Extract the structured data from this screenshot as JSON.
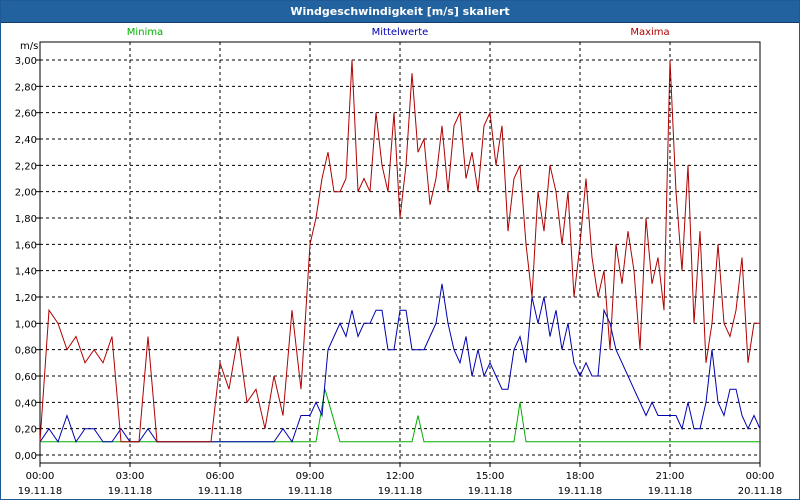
{
  "window": {
    "title": "Windgeschwindigkeit [m/s] skaliert"
  },
  "chart_data": {
    "type": "line",
    "title": "Windgeschwindigkeit [m/s] skaliert",
    "ylabel": "m/s",
    "xlabel": "",
    "ylim": [
      0,
      3.0
    ],
    "yticks": [
      "0,00",
      "0,20",
      "0,40",
      "0,60",
      "0,80",
      "1,00",
      "1,20",
      "1,40",
      "1,60",
      "1,80",
      "2,00",
      "2,20",
      "2,40",
      "2,60",
      "2,80",
      "3,00"
    ],
    "xlim": [
      0,
      24
    ],
    "xticks": [
      {
        "time": "00:00",
        "date": "19.11.18"
      },
      {
        "time": "03:00",
        "date": "19.11.18"
      },
      {
        "time": "06:00",
        "date": "19.11.18"
      },
      {
        "time": "09:00",
        "date": "19.11.18"
      },
      {
        "time": "12:00",
        "date": "19.11.18"
      },
      {
        "time": "15:00",
        "date": "19.11.18"
      },
      {
        "time": "18:00",
        "date": "19.11.18"
      },
      {
        "time": "21:00",
        "date": "19.11.18"
      },
      {
        "time": "00:00",
        "date": "20.11.18"
      }
    ],
    "grid": true,
    "legend_position": "top",
    "series": [
      {
        "name": "Minima",
        "color": "#00b000",
        "x": [
          0,
          8.8,
          9.2,
          9.5,
          10,
          12.4,
          12.6,
          12.8,
          15.8,
          16,
          16.2,
          24
        ],
        "y": [
          0.1,
          0.1,
          0.1,
          0.5,
          0.1,
          0.1,
          0.3,
          0.1,
          0.1,
          0.4,
          0.1,
          0.1
        ]
      },
      {
        "name": "Mittelwerte",
        "color": "#0000b0",
        "x": [
          0,
          0.3,
          0.6,
          0.9,
          1.2,
          1.5,
          1.8,
          2.1,
          2.4,
          2.7,
          3.0,
          3.3,
          3.6,
          3.9,
          4.2,
          4.5,
          4.8,
          5.1,
          5.4,
          5.7,
          6.0,
          6.3,
          6.6,
          6.9,
          7.2,
          7.5,
          7.8,
          8.1,
          8.4,
          8.7,
          9.0,
          9.2,
          9.4,
          9.6,
          9.8,
          10.0,
          10.2,
          10.4,
          10.6,
          10.8,
          11.0,
          11.2,
          11.4,
          11.6,
          11.8,
          12.0,
          12.2,
          12.4,
          12.6,
          12.8,
          13.0,
          13.2,
          13.4,
          13.6,
          13.8,
          14.0,
          14.2,
          14.4,
          14.6,
          14.8,
          15.0,
          15.2,
          15.4,
          15.6,
          15.8,
          16.0,
          16.2,
          16.4,
          16.6,
          16.8,
          17.0,
          17.2,
          17.4,
          17.6,
          17.8,
          18.0,
          18.2,
          18.4,
          18.6,
          18.8,
          19.0,
          19.2,
          19.4,
          19.6,
          19.8,
          20.0,
          20.2,
          20.4,
          20.6,
          20.8,
          21.0,
          21.2,
          21.4,
          21.6,
          21.8,
          22.0,
          22.2,
          22.4,
          22.6,
          22.8,
          23.0,
          23.2,
          23.4,
          23.6,
          23.8,
          24.0
        ],
        "y": [
          0.1,
          0.2,
          0.1,
          0.3,
          0.1,
          0.2,
          0.2,
          0.1,
          0.1,
          0.2,
          0.1,
          0.1,
          0.2,
          0.1,
          0.1,
          0.1,
          0.1,
          0.1,
          0.1,
          0.1,
          0.1,
          0.1,
          0.1,
          0.1,
          0.1,
          0.1,
          0.1,
          0.2,
          0.1,
          0.3,
          0.3,
          0.4,
          0.3,
          0.8,
          0.9,
          1.0,
          0.9,
          1.1,
          0.9,
          1.0,
          1.0,
          1.1,
          1.1,
          0.8,
          0.8,
          1.1,
          1.1,
          0.8,
          0.8,
          0.8,
          0.9,
          1.0,
          1.3,
          1.0,
          0.8,
          0.7,
          0.9,
          0.6,
          0.8,
          0.6,
          0.7,
          0.6,
          0.5,
          0.5,
          0.8,
          0.9,
          0.7,
          1.2,
          1.0,
          1.2,
          0.9,
          1.1,
          0.8,
          1.0,
          0.7,
          0.6,
          0.7,
          0.6,
          0.6,
          1.1,
          1.0,
          0.8,
          0.7,
          0.6,
          0.5,
          0.4,
          0.3,
          0.4,
          0.3,
          0.3,
          0.3,
          0.3,
          0.2,
          0.4,
          0.2,
          0.2,
          0.4,
          0.8,
          0.4,
          0.3,
          0.5,
          0.5,
          0.3,
          0.2,
          0.3,
          0.2
        ]
      },
      {
        "name": "Maxima",
        "color": "#b00000",
        "x": [
          0,
          0.3,
          0.6,
          0.9,
          1.2,
          1.5,
          1.8,
          2.1,
          2.4,
          2.7,
          3.0,
          3.3,
          3.6,
          3.9,
          4.2,
          4.5,
          4.8,
          5.1,
          5.4,
          5.7,
          6.0,
          6.3,
          6.6,
          6.9,
          7.2,
          7.5,
          7.8,
          8.1,
          8.4,
          8.7,
          9.0,
          9.2,
          9.4,
          9.6,
          9.8,
          10.0,
          10.2,
          10.4,
          10.6,
          10.8,
          11.0,
          11.2,
          11.4,
          11.6,
          11.8,
          12.0,
          12.2,
          12.4,
          12.6,
          12.8,
          13.0,
          13.2,
          13.4,
          13.6,
          13.8,
          14.0,
          14.2,
          14.4,
          14.6,
          14.8,
          15.0,
          15.2,
          15.4,
          15.6,
          15.8,
          16.0,
          16.2,
          16.4,
          16.6,
          16.8,
          17.0,
          17.2,
          17.4,
          17.6,
          17.8,
          18.0,
          18.2,
          18.4,
          18.6,
          18.8,
          19.0,
          19.2,
          19.4,
          19.6,
          19.8,
          20.0,
          20.2,
          20.4,
          20.6,
          20.8,
          21.0,
          21.2,
          21.4,
          21.6,
          21.8,
          22.0,
          22.2,
          22.4,
          22.6,
          22.8,
          23.0,
          23.2,
          23.4,
          23.6,
          23.8,
          24.0
        ],
        "y": [
          0.1,
          1.1,
          1.0,
          0.8,
          0.9,
          0.7,
          0.8,
          0.7,
          0.9,
          0.1,
          0.1,
          0.1,
          0.9,
          0.1,
          0.1,
          0.1,
          0.1,
          0.1,
          0.1,
          0.1,
          0.7,
          0.5,
          0.9,
          0.4,
          0.5,
          0.2,
          0.6,
          0.3,
          1.1,
          0.5,
          1.6,
          1.8,
          2.1,
          2.3,
          2.0,
          2.0,
          2.1,
          3.0,
          2.0,
          2.1,
          2.0,
          2.6,
          2.2,
          2.0,
          2.6,
          1.8,
          2.2,
          2.9,
          2.3,
          2.4,
          1.9,
          2.1,
          2.5,
          2.0,
          2.5,
          2.6,
          2.1,
          2.3,
          2.0,
          2.5,
          2.6,
          2.2,
          2.5,
          1.7,
          2.1,
          2.2,
          1.6,
          1.2,
          2.0,
          1.7,
          2.2,
          2.0,
          1.6,
          2.0,
          1.2,
          1.6,
          2.1,
          1.5,
          1.2,
          1.4,
          0.8,
          1.6,
          1.3,
          1.7,
          1.4,
          0.8,
          1.8,
          1.3,
          1.5,
          1.1,
          3.0,
          2.0,
          1.4,
          2.2,
          1.0,
          1.7,
          0.7,
          1.0,
          1.6,
          1.0,
          0.9,
          1.1,
          1.5,
          0.7,
          1.0,
          1.0
        ]
      }
    ]
  }
}
